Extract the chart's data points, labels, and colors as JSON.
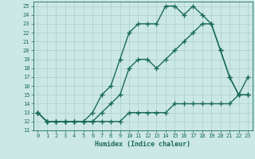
{
  "xlabel": "Humidex (Indice chaleur)",
  "background_color": "#cce8e4",
  "grid_color": "#aacfc8",
  "line_color": "#1a6b5a",
  "xlim": [
    -0.5,
    23.5
  ],
  "ylim": [
    11,
    25.5
  ],
  "xticks": [
    0,
    1,
    2,
    3,
    4,
    5,
    6,
    7,
    8,
    9,
    10,
    11,
    12,
    13,
    14,
    15,
    16,
    17,
    18,
    19,
    20,
    21,
    22,
    23
  ],
  "yticks": [
    11,
    12,
    13,
    14,
    15,
    16,
    17,
    18,
    19,
    20,
    21,
    22,
    23,
    24,
    25
  ],
  "curve1_x": [
    0,
    1,
    2,
    3,
    4,
    5,
    6,
    7,
    8,
    9,
    10,
    11,
    12,
    13,
    14,
    15,
    16,
    17,
    18,
    19,
    20,
    21,
    22,
    23
  ],
  "curve1_y": [
    13,
    12,
    12,
    12,
    12,
    12,
    12,
    13,
    14,
    15,
    18,
    19,
    19,
    18,
    19,
    20,
    21,
    22,
    23,
    23,
    20,
    17,
    15,
    17
  ],
  "curve2_x": [
    0,
    1,
    2,
    3,
    4,
    5,
    6,
    7,
    8,
    9,
    10,
    11,
    12,
    13,
    14,
    15,
    16,
    17,
    18,
    19,
    20,
    21,
    22,
    23
  ],
  "curve2_y": [
    13,
    12,
    12,
    12,
    12,
    12,
    13,
    15,
    16,
    19,
    22,
    23,
    23,
    23,
    25,
    25,
    24,
    25,
    24,
    23,
    20,
    17,
    15,
    15
  ],
  "curve3_x": [
    0,
    1,
    2,
    3,
    4,
    5,
    6,
    7,
    8,
    9,
    10,
    11,
    12,
    13,
    14,
    15,
    16,
    17,
    18,
    19,
    20,
    21,
    22,
    23
  ],
  "curve3_y": [
    13,
    12,
    12,
    12,
    12,
    12,
    12,
    12,
    12,
    12,
    13,
    13,
    13,
    13,
    13,
    14,
    14,
    14,
    14,
    14,
    14,
    14,
    15,
    15
  ],
  "marker": "+",
  "markersize": 4,
  "linewidth": 1.0
}
